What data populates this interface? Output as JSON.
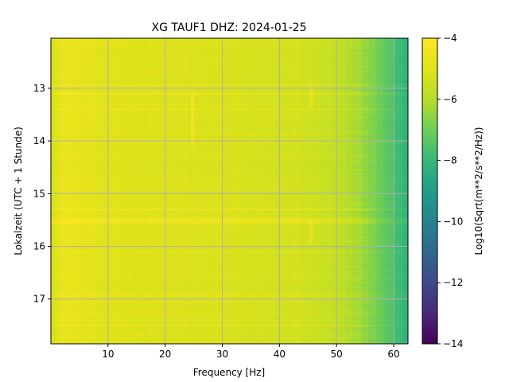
{
  "chart_data": {
    "type": "heatmap",
    "title": "XG TAUF1  DHZ: 2024-01-25",
    "xlabel": "Frequency [Hz]",
    "ylabel": "Lokalzeit (UTC + 1 Stunde)",
    "colorbar_label": "Log10(Sqrt(m**2/s**2/Hz))",
    "colormap": "viridis",
    "xlim": [
      0,
      62.5
    ],
    "ylim": [
      12.05,
      17.85
    ],
    "y_inverted": true,
    "x_ticks": [
      10,
      20,
      30,
      40,
      50,
      60
    ],
    "x_tick_labels": [
      "10",
      "20",
      "30",
      "40",
      "50",
      "60"
    ],
    "y_ticks": [
      13,
      14,
      15,
      16,
      17
    ],
    "y_tick_labels": [
      "13",
      "14",
      "15",
      "16",
      "17"
    ],
    "clim": [
      -14,
      -4
    ],
    "colorbar_ticks": [
      -4,
      -6,
      -8,
      -10,
      -12,
      -14
    ],
    "colorbar_tick_labels": [
      "−4",
      "−6",
      "−8",
      "−10",
      "−12",
      "−14"
    ],
    "grid": true,
    "spectrum_profile": {
      "frequency_hz": [
        0,
        2,
        5,
        10,
        20,
        30,
        40,
        45,
        50,
        55,
        58,
        60,
        62.5
      ],
      "log10_amplitude": [
        -5.3,
        -4.6,
        -4.8,
        -4.95,
        -5.05,
        -5.15,
        -5.3,
        -5.35,
        -5.65,
        -6.4,
        -7.1,
        -7.6,
        -8.2
      ]
    },
    "horizontal_features": [
      {
        "time": 12.95,
        "log10_delta": 0.5
      },
      {
        "time": 13.1,
        "log10_delta": 0.45
      },
      {
        "time": 13.4,
        "log10_delta": 0.4
      },
      {
        "time": 15.3,
        "log10_delta": 0.55
      },
      {
        "time": 15.5,
        "log10_delta": 0.9
      },
      {
        "time": 15.55,
        "log10_delta": 0.8
      },
      {
        "time": 16.1,
        "log10_delta": 0.35
      },
      {
        "time": 17.5,
        "log10_delta": 0.4
      }
    ],
    "vertical_features": [
      {
        "frequency_hz": 24.8,
        "time_range": [
          13.1,
          14.1
        ]
      },
      {
        "frequency_hz": 45.5,
        "time_range": [
          12.9,
          13.4
        ]
      },
      {
        "frequency_hz": 45.5,
        "time_range": [
          15.5,
          15.95
        ]
      }
    ]
  }
}
